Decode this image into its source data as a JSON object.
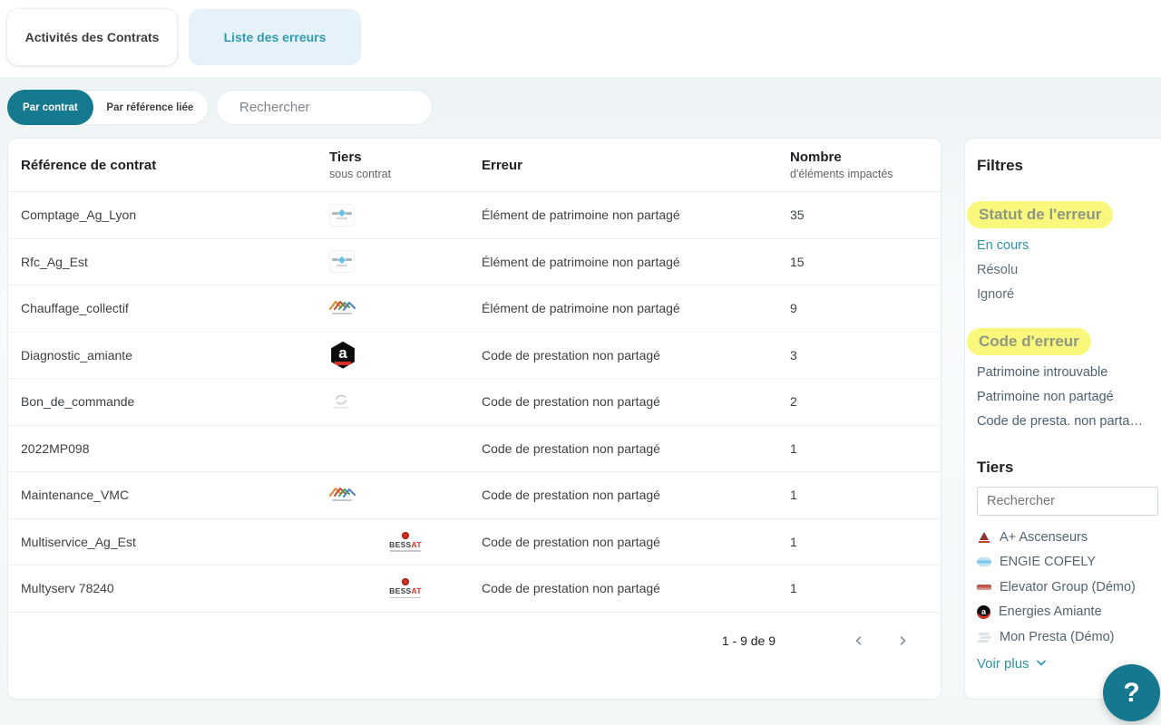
{
  "tabs": [
    {
      "label": "Activités des Contrats",
      "active": false
    },
    {
      "label": "Liste des erreurs",
      "active": true
    }
  ],
  "filter_bar": {
    "segments": [
      {
        "label": "Par contrat",
        "active": true
      },
      {
        "label": "Par référence liée",
        "active": false
      }
    ],
    "search_placeholder": "Rechercher"
  },
  "table": {
    "columns": [
      {
        "title": "Référence de contrat",
        "subtitle": ""
      },
      {
        "title": "Tiers",
        "subtitle": "sous contrat"
      },
      {
        "title": "Erreur",
        "subtitle": ""
      },
      {
        "title": "Nombre",
        "subtitle": "d'éléments impactés"
      }
    ],
    "rows": [
      {
        "reference": "Comptage_Ag_Lyon",
        "logo": "sanissp",
        "error": "Élément de patrimoine non partagé",
        "count": "35"
      },
      {
        "reference": "Rfc_Ag_Est",
        "logo": "sanissp",
        "error": "Élément de patrimoine non partagé",
        "count": "15"
      },
      {
        "reference": "Chauffage_collectif",
        "logo": "roofs",
        "error": "Élément de patrimoine non partagé",
        "count": "9"
      },
      {
        "reference": "Diagnostic_amiante",
        "logo": "amiante",
        "error": "Code de prestation non partagé",
        "count": "3"
      },
      {
        "reference": "Bon_de_commande",
        "logo": "presta",
        "error": "Code de prestation non partagé",
        "count": "2"
      },
      {
        "reference": "2022MP098",
        "logo": "none",
        "error": "Code de prestation non partagé",
        "count": "1"
      },
      {
        "reference": "Maintenance_VMC",
        "logo": "roofs",
        "error": "Code de prestation non partagé",
        "count": "1"
      },
      {
        "reference": "Multiservice_Ag_Est",
        "logo": "bessat",
        "error": "Code de prestation non partagé",
        "count": "1"
      },
      {
        "reference": "Multyserv 78240",
        "logo": "bessat",
        "error": "Code de prestation non partagé",
        "count": "1"
      }
    ],
    "pagination": {
      "range_label": "1 - 9 de 9"
    }
  },
  "filters_panel": {
    "title": "Filtres",
    "sections": [
      {
        "title": "Statut de l'erreur",
        "items": [
          {
            "label": "En cours",
            "active": true
          },
          {
            "label": "Résolu",
            "active": false
          },
          {
            "label": "Ignoré",
            "active": false
          }
        ]
      },
      {
        "title": "Code d'erreur",
        "items": [
          {
            "label": "Patrimoine introuvable",
            "active": false
          },
          {
            "label": "Patrimoine non partagé",
            "active": false
          },
          {
            "label": "Code de presta. non parta…",
            "active": false
          }
        ]
      }
    ],
    "tiers": {
      "title": "Tiers",
      "search_placeholder": "Rechercher",
      "items": [
        {
          "name": "A+ Ascenseurs",
          "icon": "aplus"
        },
        {
          "name": "ENGIE COFELY",
          "icon": "engie"
        },
        {
          "name": "Elevator Group (Démo)",
          "icon": "elevator"
        },
        {
          "name": "Energies Amiante",
          "icon": "amiante"
        },
        {
          "name": "Mon Presta (Démo)",
          "icon": "presta"
        }
      ],
      "more_label": "Voir plus"
    }
  },
  "colors": {
    "accent_teal": "#157a90",
    "link_teal": "#2b93a8",
    "highlight_yellow": "#f9f87c"
  },
  "help_button": {
    "label": "?"
  }
}
